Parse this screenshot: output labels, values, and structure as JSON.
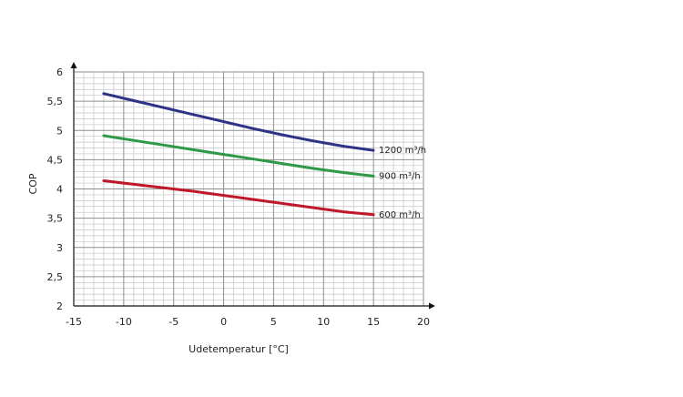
{
  "chart_data": {
    "type": "line",
    "xlabel": "Udetemperatur [°C]",
    "ylabel": "COP",
    "xlim": [
      -15,
      20
    ],
    "ylim": [
      2,
      6
    ],
    "x_ticks": [
      "-15",
      "-10",
      "-5",
      "0",
      "5",
      "10",
      "15",
      "20"
    ],
    "y_ticks": [
      "2",
      "2,5",
      "3",
      "3,5",
      "4",
      "4,5",
      "5",
      "5,5",
      "6"
    ],
    "grid": true,
    "x_minor_step": 1,
    "y_minor_step": 0.1,
    "series": [
      {
        "name": "1200 m³/h",
        "color": "#2e3388",
        "x": [
          -12,
          -9,
          -6,
          -3,
          0,
          3,
          6,
          9,
          12,
          15
        ],
        "y": [
          5.63,
          5.51,
          5.39,
          5.27,
          5.15,
          5.03,
          4.92,
          4.82,
          4.73,
          4.66
        ]
      },
      {
        "name": "900 m³/h",
        "color": "#2e9a48",
        "x": [
          -12,
          -9,
          -6,
          -3,
          0,
          3,
          6,
          9,
          12,
          15
        ],
        "y": [
          4.91,
          4.83,
          4.75,
          4.67,
          4.59,
          4.51,
          4.43,
          4.35,
          4.28,
          4.22
        ]
      },
      {
        "name": "600 m³/h",
        "color": "#c0172a",
        "x": [
          -12,
          -9,
          -6,
          -3,
          0,
          3,
          6,
          9,
          12,
          15
        ],
        "y": [
          4.14,
          4.08,
          4.02,
          3.96,
          3.89,
          3.82,
          3.75,
          3.68,
          3.61,
          3.56
        ]
      }
    ]
  }
}
